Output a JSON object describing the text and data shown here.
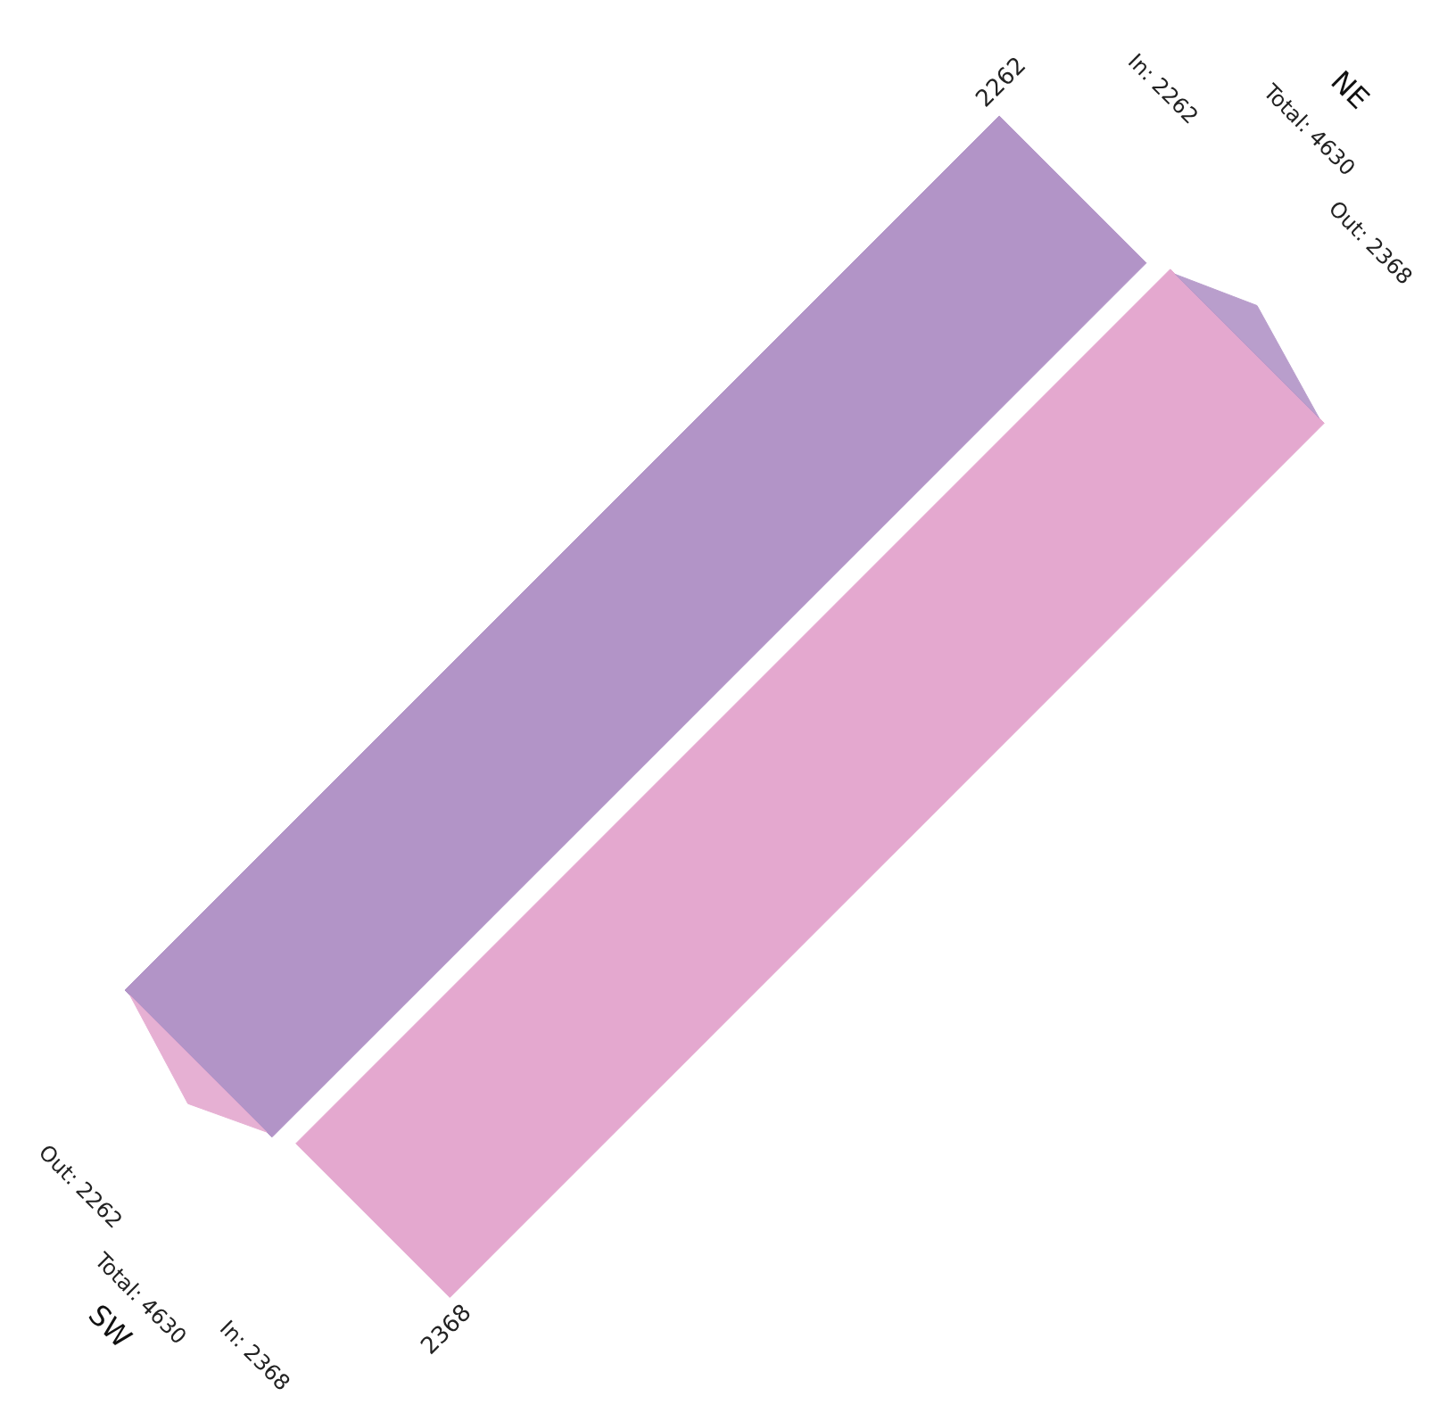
{
  "chart_data": {
    "type": "other",
    "categories": [
      "NE",
      "SW"
    ],
    "series": [
      {
        "color": "#b294c7",
        "values": [
          2262,
          null
        ]
      },
      {
        "color": "#e4a8cf",
        "values": [
          null,
          2368
        ]
      }
    ],
    "data_labels": true,
    "annotations": [
      "In: 2262",
      "Total: 4630",
      "Out: 2368",
      "Out: 2262",
      "Total: 4630",
      "In: 2368"
    ]
  }
}
